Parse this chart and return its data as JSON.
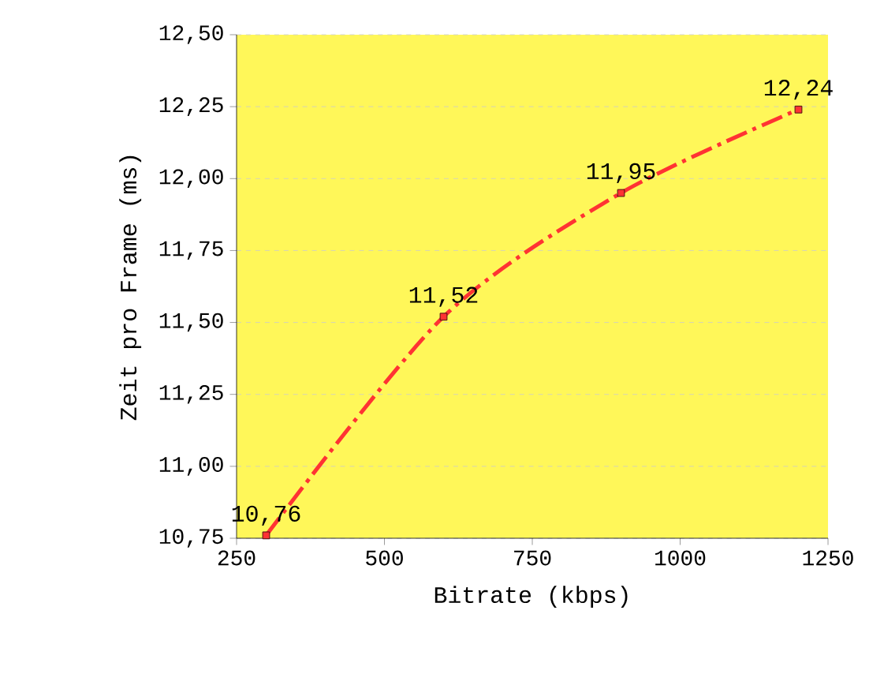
{
  "chart_data": {
    "type": "line",
    "xlabel": "Bitrate (kbps)",
    "ylabel": "Zeit pro Frame (ms)",
    "x": [
      300,
      600,
      900,
      1200
    ],
    "series": [
      {
        "color": "#ff3333",
        "values": [
          10.76,
          11.52,
          11.95,
          12.24
        ],
        "value_labels": [
          "10,76",
          "11,52",
          "11,95",
          "12,24"
        ]
      }
    ],
    "xlim": [
      250,
      1250
    ],
    "xticks": [
      250,
      500,
      750,
      1000,
      1250
    ],
    "ylim": [
      10.75,
      12.5
    ],
    "yticks": [
      {
        "value": 10.75,
        "label": "10,75"
      },
      {
        "value": 11.0,
        "label": "11,00"
      },
      {
        "value": 11.25,
        "label": "11,25"
      },
      {
        "value": 11.5,
        "label": "11,50"
      },
      {
        "value": 11.75,
        "label": "11,75"
      },
      {
        "value": 12.0,
        "label": "12,00"
      },
      {
        "value": 12.25,
        "label": "12,25"
      },
      {
        "value": 12.5,
        "label": "12,50"
      }
    ],
    "grid": "y",
    "marker": "square",
    "line_style": "dashed"
  }
}
